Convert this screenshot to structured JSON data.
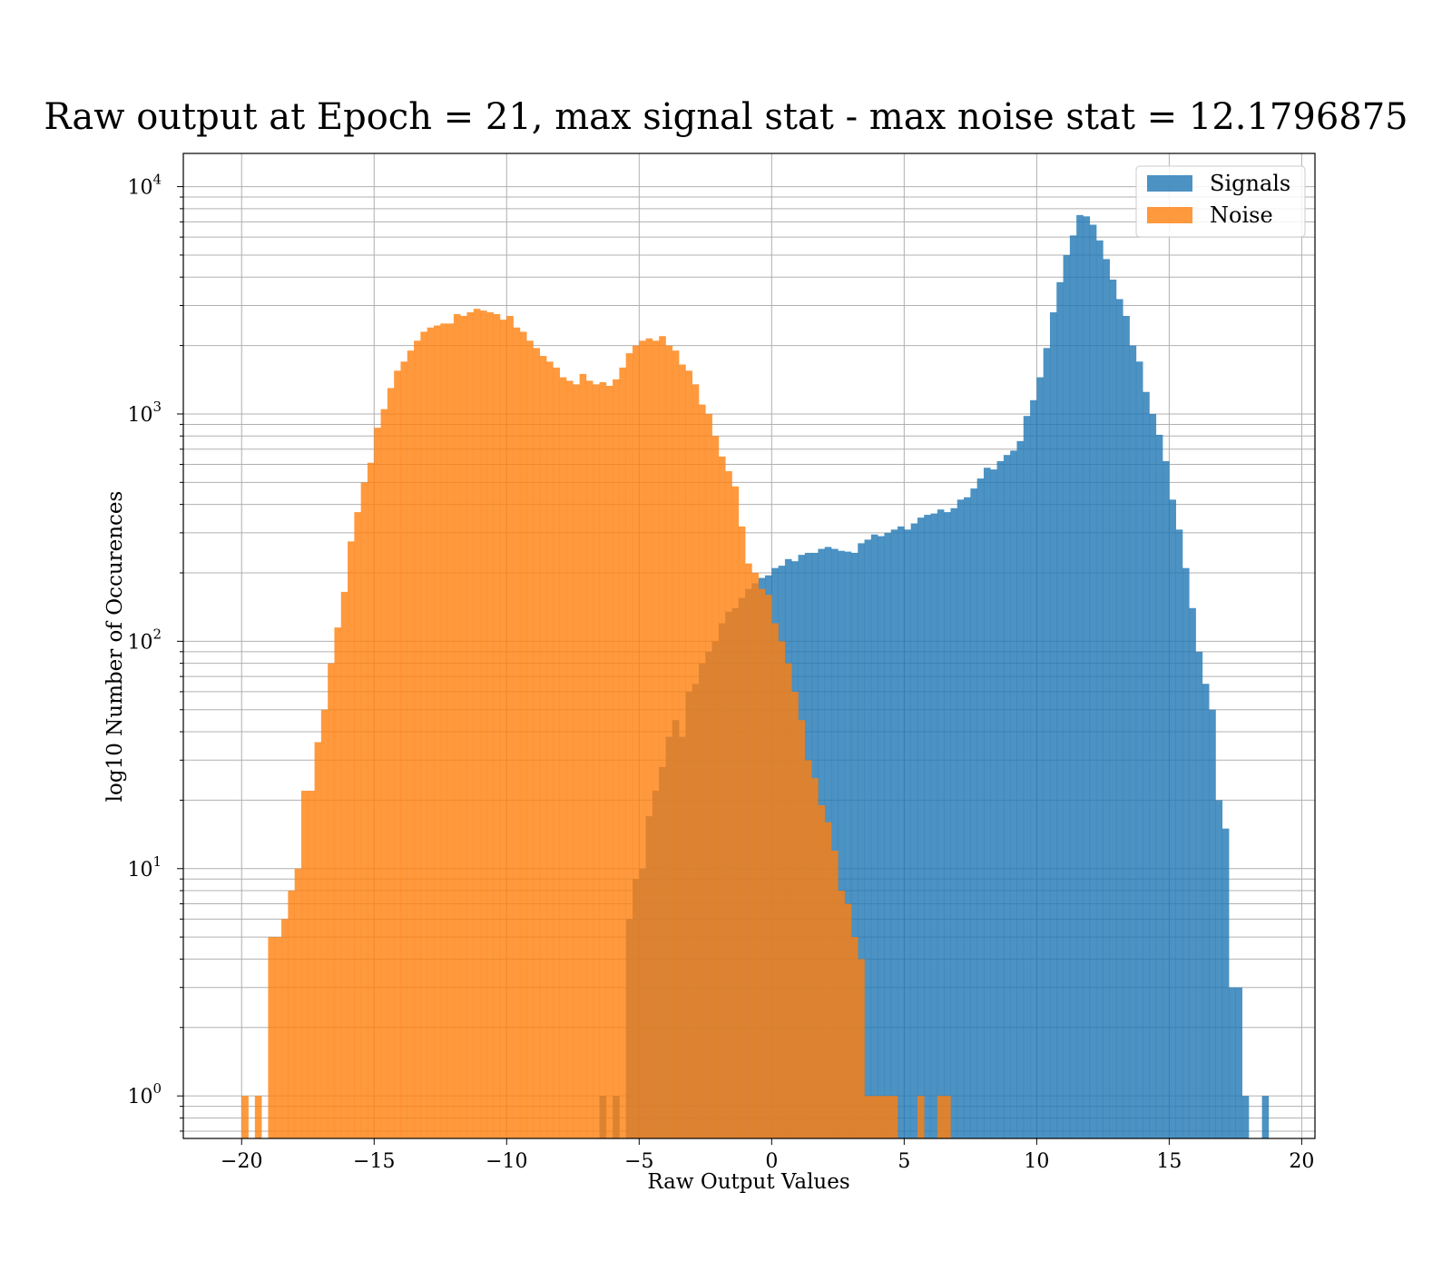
{
  "chart_data": {
    "type": "bar",
    "title": "Raw output at Epoch = 21, max signal stat - max noise stat = 12.1796875",
    "xlabel": "Raw Output Values",
    "ylabel": "log10 Number of Occurences",
    "xlim": [
      -22.2,
      20.5
    ],
    "ylim": [
      0.65,
      14000
    ],
    "yscale": "log",
    "grid": true,
    "legend_position": "top-right",
    "x_ticks": [
      -20,
      -15,
      -10,
      -5,
      0,
      5,
      10,
      15,
      20
    ],
    "x_tick_labels": [
      "−20",
      "−15",
      "−10",
      "−5",
      "0",
      "5",
      "10",
      "15",
      "20"
    ],
    "y_ticks": [
      {
        "value": 1,
        "base": "10",
        "exp": "0"
      },
      {
        "value": 10,
        "base": "10",
        "exp": "1"
      },
      {
        "value": 100,
        "base": "10",
        "exp": "2"
      },
      {
        "value": 1000,
        "base": "10",
        "exp": "3"
      },
      {
        "value": 10000,
        "base": "10",
        "exp": "4"
      }
    ],
    "series": [
      {
        "name": "Signals",
        "color": "#1f77b4",
        "opacity": 0.8,
        "bins": [
          [
            -6.5,
            1
          ],
          [
            -6.0,
            1
          ],
          [
            -5.5,
            6
          ],
          [
            -5.25,
            9
          ],
          [
            -5.0,
            10
          ],
          [
            -4.75,
            17
          ],
          [
            -4.5,
            22
          ],
          [
            -4.25,
            28
          ],
          [
            -4.0,
            38
          ],
          [
            -3.75,
            45
          ],
          [
            -3.5,
            38
          ],
          [
            -3.25,
            60
          ],
          [
            -3.0,
            65
          ],
          [
            -2.75,
            80
          ],
          [
            -2.5,
            90
          ],
          [
            -2.25,
            100
          ],
          [
            -2.0,
            120
          ],
          [
            -1.75,
            135
          ],
          [
            -1.5,
            140
          ],
          [
            -1.25,
            155
          ],
          [
            -1.0,
            170
          ],
          [
            -0.75,
            180
          ],
          [
            -0.5,
            190
          ],
          [
            -0.25,
            195
          ],
          [
            0.0,
            210
          ],
          [
            0.25,
            215
          ],
          [
            0.5,
            230
          ],
          [
            0.75,
            225
          ],
          [
            1.0,
            240
          ],
          [
            1.25,
            245
          ],
          [
            1.5,
            245
          ],
          [
            1.75,
            255
          ],
          [
            2.0,
            260
          ],
          [
            2.25,
            255
          ],
          [
            2.5,
            250
          ],
          [
            2.75,
            248
          ],
          [
            3.0,
            245
          ],
          [
            3.25,
            270
          ],
          [
            3.5,
            280
          ],
          [
            3.75,
            295
          ],
          [
            4.0,
            290
          ],
          [
            4.25,
            300
          ],
          [
            4.5,
            310
          ],
          [
            4.75,
            320
          ],
          [
            5.0,
            310
          ],
          [
            5.25,
            330
          ],
          [
            5.5,
            350
          ],
          [
            5.75,
            360
          ],
          [
            6.0,
            365
          ],
          [
            6.25,
            380
          ],
          [
            6.5,
            370
          ],
          [
            6.75,
            385
          ],
          [
            7.0,
            420
          ],
          [
            7.25,
            430
          ],
          [
            7.5,
            470
          ],
          [
            7.75,
            520
          ],
          [
            8.0,
            580
          ],
          [
            8.25,
            570
          ],
          [
            8.5,
            620
          ],
          [
            8.75,
            660
          ],
          [
            9.0,
            690
          ],
          [
            9.25,
            760
          ],
          [
            9.5,
            980
          ],
          [
            9.75,
            1150
          ],
          [
            10.0,
            1450
          ],
          [
            10.25,
            1950
          ],
          [
            10.5,
            2800
          ],
          [
            10.75,
            3800
          ],
          [
            11.0,
            5000
          ],
          [
            11.25,
            6100
          ],
          [
            11.5,
            7500
          ],
          [
            11.75,
            7400
          ],
          [
            12.0,
            6800
          ],
          [
            12.25,
            5800
          ],
          [
            12.5,
            4800
          ],
          [
            12.75,
            3900
          ],
          [
            13.0,
            3200
          ],
          [
            13.25,
            2700
          ],
          [
            13.5,
            2000
          ],
          [
            13.75,
            1700
          ],
          [
            14.0,
            1250
          ],
          [
            14.25,
            1000
          ],
          [
            14.5,
            810
          ],
          [
            14.75,
            620
          ],
          [
            15.0,
            420
          ],
          [
            15.25,
            310
          ],
          [
            15.5,
            210
          ],
          [
            15.75,
            140
          ],
          [
            16.0,
            90
          ],
          [
            16.25,
            65
          ],
          [
            16.5,
            50
          ],
          [
            16.75,
            20
          ],
          [
            17.0,
            15
          ],
          [
            17.25,
            3
          ],
          [
            17.5,
            3
          ],
          [
            17.75,
            1
          ],
          [
            18.0,
            0
          ],
          [
            18.25,
            0
          ],
          [
            18.5,
            1
          ]
        ]
      },
      {
        "name": "Noise",
        "color": "#ff7f0e",
        "opacity": 0.8,
        "bins": [
          [
            -20.0,
            1
          ],
          [
            -19.75,
            0
          ],
          [
            -19.5,
            1
          ],
          [
            -19.25,
            0
          ],
          [
            -19.0,
            5
          ],
          [
            -18.75,
            5
          ],
          [
            -18.5,
            6
          ],
          [
            -18.25,
            8
          ],
          [
            -18.0,
            10
          ],
          [
            -17.75,
            22
          ],
          [
            -17.5,
            22
          ],
          [
            -17.25,
            36
          ],
          [
            -17.0,
            50
          ],
          [
            -16.75,
            80
          ],
          [
            -16.5,
            115
          ],
          [
            -16.25,
            165
          ],
          [
            -16.0,
            275
          ],
          [
            -15.75,
            370
          ],
          [
            -15.5,
            500
          ],
          [
            -15.25,
            610
          ],
          [
            -15.0,
            870
          ],
          [
            -14.75,
            1050
          ],
          [
            -14.5,
            1300
          ],
          [
            -14.25,
            1550
          ],
          [
            -14.0,
            1700
          ],
          [
            -13.75,
            1900
          ],
          [
            -13.5,
            2100
          ],
          [
            -13.25,
            2300
          ],
          [
            -13.0,
            2400
          ],
          [
            -12.75,
            2450
          ],
          [
            -12.5,
            2500
          ],
          [
            -12.25,
            2500
          ],
          [
            -12.0,
            2750
          ],
          [
            -11.75,
            2700
          ],
          [
            -11.5,
            2800
          ],
          [
            -11.25,
            2900
          ],
          [
            -11.0,
            2850
          ],
          [
            -10.75,
            2800
          ],
          [
            -10.5,
            2750
          ],
          [
            -10.25,
            2600
          ],
          [
            -10.0,
            2700
          ],
          [
            -9.75,
            2400
          ],
          [
            -9.5,
            2300
          ],
          [
            -9.25,
            2100
          ],
          [
            -9.0,
            1950
          ],
          [
            -8.75,
            1800
          ],
          [
            -8.5,
            1700
          ],
          [
            -8.25,
            1600
          ],
          [
            -8.0,
            1450
          ],
          [
            -7.75,
            1400
          ],
          [
            -7.5,
            1350
          ],
          [
            -7.25,
            1500
          ],
          [
            -7.0,
            1400
          ],
          [
            -6.75,
            1350
          ],
          [
            -6.5,
            1380
          ],
          [
            -6.25,
            1330
          ],
          [
            -6.0,
            1420
          ],
          [
            -5.75,
            1600
          ],
          [
            -5.5,
            1850
          ],
          [
            -5.25,
            2000
          ],
          [
            -5.0,
            2100
          ],
          [
            -4.75,
            2150
          ],
          [
            -4.5,
            2100
          ],
          [
            -4.25,
            2200
          ],
          [
            -4.0,
            2000
          ],
          [
            -3.75,
            1900
          ],
          [
            -3.5,
            1650
          ],
          [
            -3.25,
            1550
          ],
          [
            -3.0,
            1350
          ],
          [
            -2.75,
            1100
          ],
          [
            -2.5,
            1000
          ],
          [
            -2.25,
            800
          ],
          [
            -2.0,
            650
          ],
          [
            -1.75,
            560
          ],
          [
            -1.5,
            480
          ],
          [
            -1.25,
            320
          ],
          [
            -1.0,
            220
          ],
          [
            -0.75,
            200
          ],
          [
            -0.5,
            170
          ],
          [
            -0.25,
            160
          ],
          [
            0.0,
            120
          ],
          [
            0.25,
            100
          ],
          [
            0.5,
            80
          ],
          [
            0.75,
            60
          ],
          [
            1.0,
            45
          ],
          [
            1.25,
            30
          ],
          [
            1.5,
            25
          ],
          [
            1.75,
            19
          ],
          [
            2.0,
            16
          ],
          [
            2.25,
            12
          ],
          [
            2.5,
            8
          ],
          [
            2.75,
            7
          ],
          [
            3.0,
            5
          ],
          [
            3.25,
            4
          ],
          [
            3.5,
            1
          ],
          [
            3.75,
            1
          ],
          [
            4.0,
            1
          ],
          [
            4.25,
            1
          ],
          [
            4.5,
            1
          ],
          [
            4.75,
            0
          ],
          [
            5.0,
            0
          ],
          [
            5.25,
            0
          ],
          [
            5.5,
            1
          ],
          [
            5.75,
            0
          ],
          [
            6.0,
            0
          ],
          [
            6.25,
            1
          ],
          [
            6.5,
            1
          ]
        ]
      }
    ]
  }
}
